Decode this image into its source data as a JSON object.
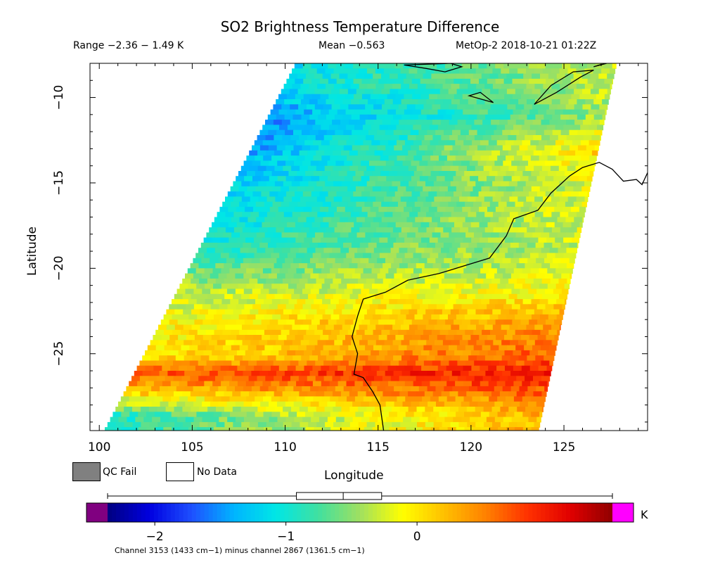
{
  "header": {
    "title": "SO2 Brightness Temperature Difference",
    "range_text": "Range −2.36 − 1.49 K",
    "mean_text": "Mean −0.563",
    "satellite_text": "MetOp-2 2018-10-21 01:22Z"
  },
  "legend": {
    "qc_fail_label": "QC Fail",
    "no_data_label": "No Data",
    "qc_fail_color": "#808080"
  },
  "colorbar": {
    "units": "K",
    "ticks": [
      "−2",
      "−1",
      "0"
    ],
    "colors": [
      "#000080",
      "#0000e0",
      "#1e50ff",
      "#00b4ff",
      "#00e6e6",
      "#40e0a0",
      "#a0e060",
      "#ffff00",
      "#ffc000",
      "#ff8000",
      "#ff3000",
      "#e00000",
      "#900000"
    ],
    "under_color": "#800080",
    "over_color": "#ff00ff"
  },
  "footnote": "Channel 3153 (1433 cm−1) minus channel 2867 (1361.5 cm−1)",
  "chart_data": {
    "type": "heatmap",
    "title": "SO2 Brightness Temperature Difference",
    "xlabel": "Longitude",
    "ylabel": "Latitude",
    "xlim": [
      99.5,
      129.5
    ],
    "ylim": [
      -29.5,
      -8
    ],
    "x_ticks": [
      "100",
      "105",
      "110",
      "115",
      "120",
      "125"
    ],
    "y_ticks": [
      "−10",
      "−15",
      "−20",
      "−25"
    ],
    "value_range": [
      -2.36,
      1.49
    ],
    "mean": -0.563,
    "units": "K",
    "boxplot": {
      "whisker_low": -2.36,
      "q1": -0.92,
      "median": -0.563,
      "q3": -0.27,
      "whisker_high": 1.49
    },
    "latitude_profile": {
      "latitude": [
        -9,
        -11,
        -13,
        -15,
        -17,
        -19,
        -21,
        -23,
        -25,
        -26,
        -27,
        -28.5
      ],
      "west_values": [
        -1.1,
        -1.5,
        -1.4,
        -1.2,
        -1.1,
        -0.9,
        -0.4,
        -0.1,
        0.0,
        0.7,
        0.2,
        -0.9
      ],
      "east_values": [
        -0.3,
        -0.4,
        0.1,
        -0.2,
        -0.2,
        -0.3,
        -0.1,
        0.4,
        0.7,
        1.0,
        0.7,
        0.3
      ]
    }
  }
}
